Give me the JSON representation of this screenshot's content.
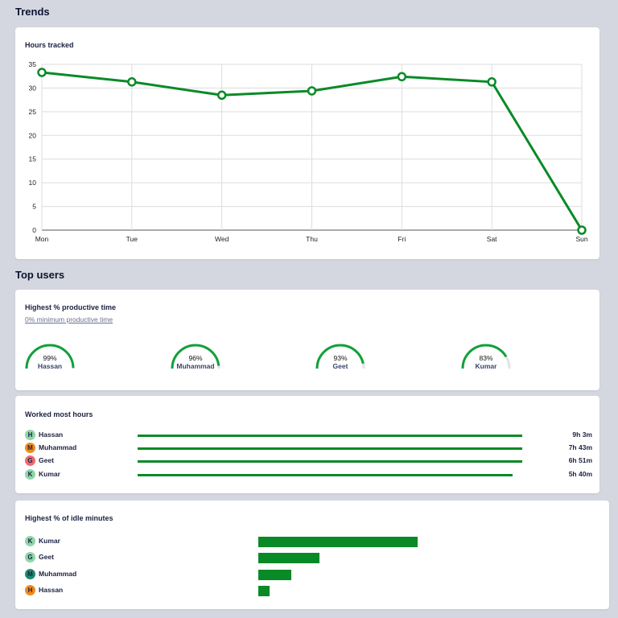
{
  "trends": {
    "heading": "Trends",
    "card_title": "Hours tracked"
  },
  "chart_data": {
    "type": "line",
    "title": "Hours tracked",
    "categories": [
      "Mon",
      "Tue",
      "Wed",
      "Thu",
      "Fri",
      "Sat",
      "Sun"
    ],
    "series": [
      {
        "name": "Hours tracked",
        "values": [
          33.3,
          31.3,
          28.5,
          29.4,
          32.4,
          31.3,
          0
        ]
      }
    ],
    "ylim": [
      0,
      35
    ],
    "yticks": [
      0,
      5,
      10,
      15,
      20,
      25,
      30,
      35
    ],
    "grid": true,
    "color": "#0a8a27"
  },
  "top_users": {
    "heading": "Top users"
  },
  "productive": {
    "title": "Highest % productive time",
    "link": "0% minimum productive time",
    "users": [
      {
        "pct_label": "99%",
        "value": 99,
        "name": "Hassan"
      },
      {
        "pct_label": "96%",
        "value": 96,
        "name": "Muhammad"
      },
      {
        "pct_label": "93%",
        "value": 93,
        "name": "Geet"
      },
      {
        "pct_label": "83%",
        "value": 83,
        "name": "Kumar"
      }
    ]
  },
  "worked": {
    "title": "Worked most hours",
    "users": [
      {
        "initial": "H",
        "name": "Hassan",
        "time": "9h 3m",
        "fraction": 1.0,
        "color": "#8fd6a8"
      },
      {
        "initial": "M",
        "name": "Muhammad",
        "time": "7h 43m",
        "fraction": 1.0,
        "color": "#f08a1c"
      },
      {
        "initial": "G",
        "name": "Geet",
        "time": "6h 51m",
        "fraction": 1.0,
        "color": "#ee6a72"
      },
      {
        "initial": "K",
        "name": "Kumar",
        "time": "5h 40m",
        "fraction": 0.975,
        "color": "#8fd6a8"
      }
    ]
  },
  "idle": {
    "title": "Highest % of idle minutes",
    "users": [
      {
        "initial": "K",
        "name": "Kumar",
        "fraction": 1.0,
        "color": "#8fd6a8"
      },
      {
        "initial": "G",
        "name": "Geet",
        "fraction": 0.384,
        "color": "#8fd6a8"
      },
      {
        "initial": "M",
        "name": "Muhammad",
        "fraction": 0.207,
        "color": "#1e8a6e"
      },
      {
        "initial": "H",
        "name": "Hassan",
        "fraction": 0.071,
        "color": "#f08a1c"
      }
    ]
  }
}
